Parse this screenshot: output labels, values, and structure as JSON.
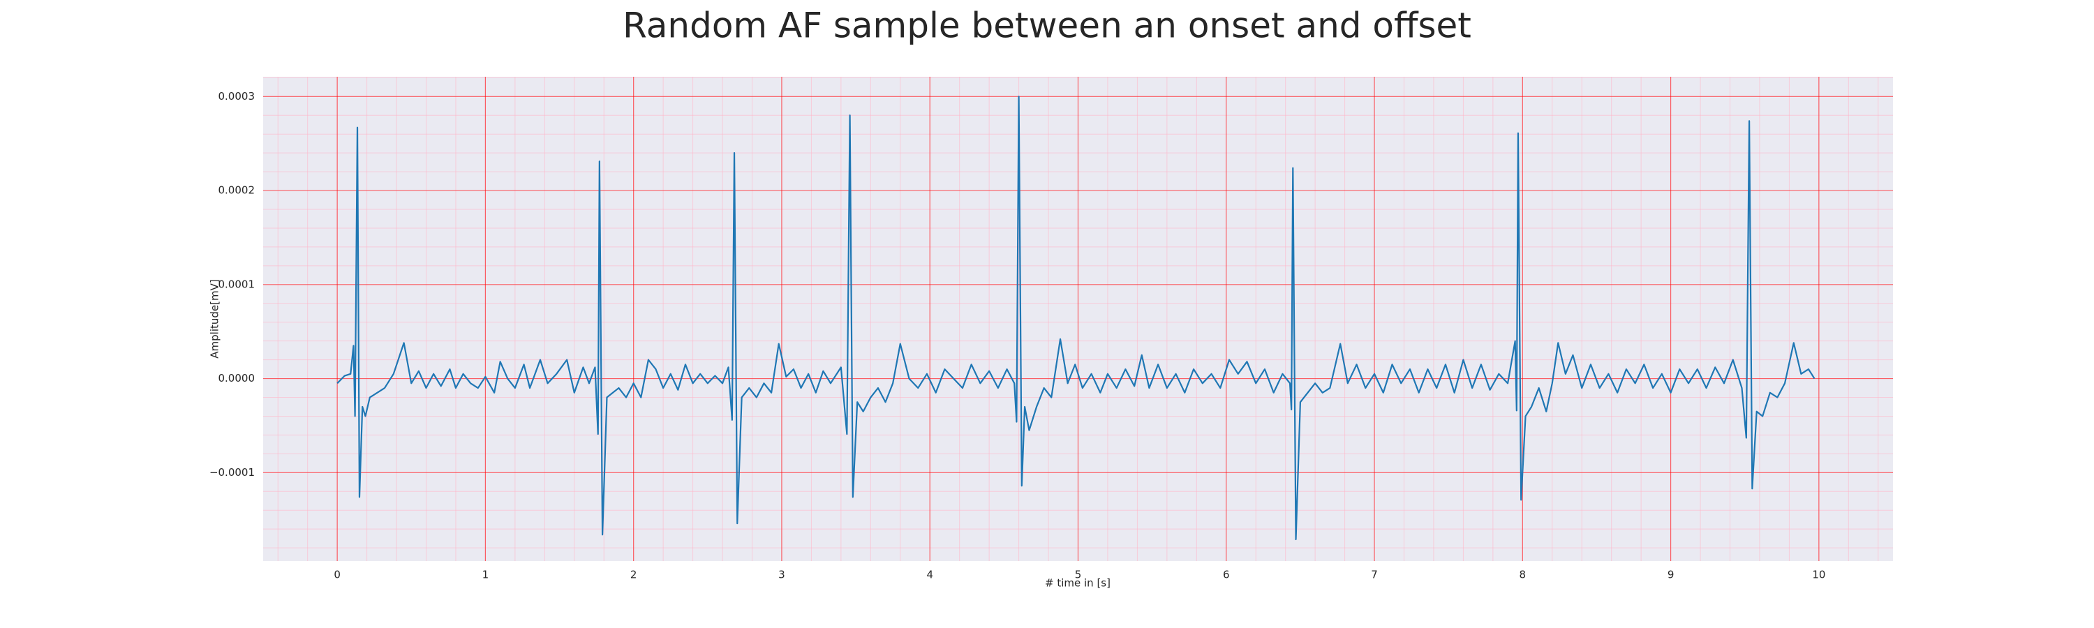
{
  "chart_data": {
    "type": "line",
    "title": "Random AF sample between an onset and offset",
    "xlabel": "# time in [s]",
    "ylabel": "Amplitude[mV]",
    "color": "#1f77b4",
    "background": "#eaeaf2",
    "grid": true,
    "grid_color": "#ff0000",
    "minor_grid": true,
    "minor_divisions": 5,
    "minor_grid_color": "#ffb6c8",
    "xlim": [
      -0.5,
      10.5
    ],
    "ylim": [
      -0.000194,
      0.000321
    ],
    "xticks": [
      0,
      1,
      2,
      3,
      4,
      5,
      6,
      7,
      8,
      9,
      10
    ],
    "yticks": [
      {
        "value": -0.0001,
        "label": "−0.0001"
      },
      {
        "value": 0,
        "label": "0.0000"
      },
      0.0001,
      0.0002,
      0.0003
    ],
    "x": [
      0,
      0.05,
      0.09,
      0.11,
      0.12,
      0.136,
      0.15,
      0.17,
      0.19,
      0.22,
      0.27,
      0.32,
      0.38,
      0.45,
      0.5,
      0.55,
      0.6,
      0.65,
      0.7,
      0.76,
      0.8,
      0.85,
      0.9,
      0.95,
      1.0,
      1.06,
      1.1,
      1.15,
      1.2,
      1.26,
      1.3,
      1.37,
      1.42,
      1.48,
      1.55,
      1.6,
      1.66,
      1.7,
      1.74,
      1.76,
      1.77,
      1.79,
      1.82,
      1.86,
      1.9,
      1.95,
      2.0,
      2.05,
      2.1,
      2.15,
      2.2,
      2.25,
      2.3,
      2.35,
      2.4,
      2.45,
      2.5,
      2.55,
      2.6,
      2.64,
      2.665,
      2.68,
      2.7,
      2.73,
      2.78,
      2.83,
      2.88,
      2.93,
      2.98,
      3.03,
      3.08,
      3.13,
      3.18,
      3.23,
      3.28,
      3.33,
      3.4,
      3.44,
      3.46,
      3.48,
      3.51,
      3.55,
      3.6,
      3.65,
      3.7,
      3.75,
      3.8,
      3.86,
      3.92,
      3.98,
      4.04,
      4.1,
      4.16,
      4.22,
      4.28,
      4.34,
      4.4,
      4.46,
      4.52,
      4.57,
      4.585,
      4.6,
      4.62,
      4.64,
      4.67,
      4.72,
      4.77,
      4.82,
      4.88,
      4.93,
      4.98,
      5.03,
      5.09,
      5.15,
      5.2,
      5.26,
      5.32,
      5.38,
      5.43,
      5.48,
      5.54,
      5.6,
      5.66,
      5.72,
      5.78,
      5.84,
      5.9,
      5.96,
      6.02,
      6.08,
      6.14,
      6.2,
      6.26,
      6.32,
      6.38,
      6.43,
      6.44,
      6.45,
      6.47,
      6.5,
      6.55,
      6.6,
      6.65,
      6.7,
      6.77,
      6.82,
      6.88,
      6.94,
      7.0,
      7.06,
      7.12,
      7.18,
      7.24,
      7.3,
      7.36,
      7.42,
      7.48,
      7.54,
      7.6,
      7.66,
      7.72,
      7.78,
      7.84,
      7.9,
      7.95,
      7.96,
      7.97,
      7.99,
      8.02,
      8.06,
      8.11,
      8.16,
      8.2,
      8.24,
      8.29,
      8.34,
      8.4,
      8.46,
      8.52,
      8.58,
      8.64,
      8.7,
      8.76,
      8.82,
      8.88,
      8.94,
      9.0,
      9.06,
      9.12,
      9.18,
      9.24,
      9.3,
      9.36,
      9.42,
      9.48,
      9.51,
      9.53,
      9.55,
      9.58,
      9.62,
      9.67,
      9.72,
      9.77,
      9.83,
      9.88,
      9.93,
      9.97
    ],
    "values": [
      -5e-06,
      3e-06,
      5e-06,
      3.5e-05,
      -4e-05,
      0.000267,
      -0.000126,
      -3e-05,
      -4e-05,
      -2e-05,
      -1.5e-05,
      -1e-05,
      5e-06,
      3.8e-05,
      -5e-06,
      8e-06,
      -1e-05,
      5e-06,
      -8e-06,
      1e-05,
      -1e-05,
      5e-06,
      -5e-06,
      -1e-05,
      2e-06,
      -1.5e-05,
      1.8e-05,
      0,
      -1e-05,
      1.5e-05,
      -1e-05,
      2e-05,
      -5e-06,
      5e-06,
      2e-05,
      -1.5e-05,
      1.2e-05,
      -5e-06,
      1.2e-05,
      -5.9e-05,
      0.000231,
      -0.000166,
      -2e-05,
      -1.5e-05,
      -1e-05,
      -2e-05,
      -5e-06,
      -2e-05,
      2e-05,
      1e-05,
      -1e-05,
      5e-06,
      -1.2e-05,
      1.5e-05,
      -5e-06,
      5e-06,
      -5e-06,
      3e-06,
      -5e-06,
      1.2e-05,
      -4.4e-05,
      0.00024,
      -0.000154,
      -2e-05,
      -1e-05,
      -2e-05,
      -5e-06,
      -1.5e-05,
      3.7e-05,
      2e-06,
      1e-05,
      -1e-05,
      5e-06,
      -1.5e-05,
      8e-06,
      -5e-06,
      1.2e-05,
      -5.9e-05,
      0.00028,
      -0.000126,
      -2.5e-05,
      -3.5e-05,
      -2e-05,
      -1e-05,
      -2.5e-05,
      -5e-06,
      3.7e-05,
      0,
      -1e-05,
      5e-06,
      -1.5e-05,
      1e-05,
      0,
      -1e-05,
      1.5e-05,
      -5e-06,
      8e-06,
      -1e-05,
      1e-05,
      -5e-06,
      -4.6e-05,
      0.0003,
      -0.000114,
      -3e-05,
      -5.5e-05,
      -3e-05,
      -1e-05,
      -2e-05,
      4.2e-05,
      -5e-06,
      1.5e-05,
      -1e-05,
      5e-06,
      -1.5e-05,
      5e-06,
      -1e-05,
      1e-05,
      -8e-06,
      2.5e-05,
      -1e-05,
      1.5e-05,
      -1e-05,
      5e-06,
      -1.5e-05,
      1e-05,
      -5e-06,
      5e-06,
      -1e-05,
      2e-05,
      5e-06,
      1.8e-05,
      -5e-06,
      1e-05,
      -1.5e-05,
      5e-06,
      -5e-06,
      -3.3e-05,
      0.000224,
      -0.000171,
      -2.5e-05,
      -1.5e-05,
      -5e-06,
      -1.5e-05,
      -1e-05,
      3.7e-05,
      -5e-06,
      1.5e-05,
      -1e-05,
      5e-06,
      -1.5e-05,
      1.5e-05,
      -5e-06,
      1e-05,
      -1.5e-05,
      1e-05,
      -1e-05,
      1.5e-05,
      -1.5e-05,
      2e-05,
      -1e-05,
      1.5e-05,
      -1.2e-05,
      5e-06,
      -5e-06,
      4e-05,
      -3.4e-05,
      0.000261,
      -0.000129,
      -4e-05,
      -3e-05,
      -1e-05,
      -3.5e-05,
      -5e-06,
      3.8e-05,
      5e-06,
      2.5e-05,
      -1e-05,
      1.5e-05,
      -1e-05,
      5e-06,
      -1.5e-05,
      1e-05,
      -5e-06,
      1.5e-05,
      -1e-05,
      5e-06,
      -1.5e-05,
      1e-05,
      -5e-06,
      1e-05,
      -1e-05,
      1.2e-05,
      -5e-06,
      2e-05,
      -1e-05,
      -6.3e-05,
      0.000274,
      -0.000117,
      -3.5e-05,
      -4e-05,
      -1.5e-05,
      -2e-05,
      -5e-06,
      3.8e-05,
      5e-06,
      1e-05,
      0
    ]
  }
}
